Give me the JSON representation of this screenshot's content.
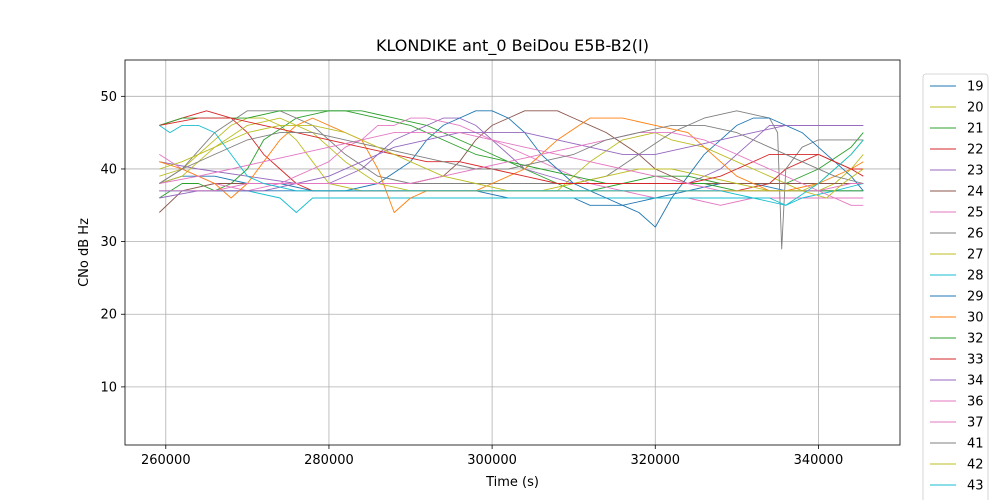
{
  "chart_data": {
    "type": "line",
    "title": "KLONDIKE ant_0 BeiDou E5B-B2(I)",
    "xlabel": "Time (s)",
    "ylabel": "CNo dB Hz",
    "xlim": [
      255000,
      350000
    ],
    "ylim": [
      2,
      55
    ],
    "xticks": [
      260000,
      280000,
      300000,
      320000,
      340000
    ],
    "yticks": [
      10,
      20,
      30,
      40,
      50
    ],
    "grid": true,
    "legend_position": "outside-right",
    "series": [
      {
        "name": "19",
        "color": "#1f77b4",
        "x": [
          259200,
          262000,
          266000,
          270000,
          274000,
          278000,
          282000,
          286000,
          290000,
          294000,
          298000,
          302000,
          306000,
          310000,
          312000,
          316000,
          320000,
          324000,
          328000,
          332000,
          336000,
          340000,
          344000,
          345500
        ],
        "y": [
          38,
          39,
          39,
          38,
          38,
          37,
          37,
          37,
          37,
          37,
          37,
          36,
          36,
          36,
          35,
          35,
          36,
          37,
          38,
          38,
          37,
          37,
          37,
          37
        ]
      },
      {
        "name": "20",
        "color": "#bcbd22",
        "x": [
          259200,
          262000,
          264000,
          266000,
          268000,
          270000,
          272000,
          274000,
          276000,
          278000,
          280000,
          284000,
          288000,
          292000,
          296000,
          300000,
          304000,
          308000,
          310000,
          312000,
          316000,
          320000,
          322000,
          326000,
          330000,
          334000,
          338000,
          340000,
          342000,
          344000,
          345500
        ],
        "y": [
          39,
          40,
          42,
          44,
          46,
          47,
          47,
          46,
          44,
          41,
          38,
          37,
          37,
          37,
          37,
          37,
          37,
          37,
          39,
          41,
          44,
          45,
          44,
          43,
          41,
          39,
          37,
          37,
          38,
          40,
          42
        ]
      },
      {
        "name": "21",
        "color": "#2ca02c",
        "x": [
          259200,
          262000,
          264000,
          266000,
          268000,
          270000,
          272000,
          276000,
          280000,
          284000,
          288000,
          292000,
          296000,
          300000,
          304000,
          308000,
          310000,
          312000,
          316000,
          320000,
          324000,
          328000,
          332000,
          336000,
          340000,
          344000,
          345500
        ],
        "y": [
          36,
          38,
          38,
          37,
          38,
          40,
          44,
          47,
          48,
          48,
          47,
          46,
          44,
          42,
          40,
          38,
          37,
          37,
          38,
          39,
          39,
          38,
          38,
          38,
          40,
          43,
          45
        ]
      },
      {
        "name": "22",
        "color": "#d62728",
        "x": [
          259200,
          262000,
          265000,
          268000,
          270000,
          272000,
          274000,
          276000,
          278000,
          280000,
          284000,
          290000,
          296000,
          302000,
          308000,
          314000,
          320000,
          326000,
          330000,
          334000,
          336000,
          338000,
          340000,
          342000,
          344000,
          345500
        ],
        "y": [
          46,
          47,
          48,
          47,
          45,
          42,
          40,
          38,
          37,
          37,
          37,
          37,
          37,
          37,
          37,
          37,
          37,
          37,
          37,
          38,
          40,
          41,
          42,
          41,
          40,
          39
        ]
      },
      {
        "name": "23",
        "color": "#9467bd",
        "x": [
          259200,
          264000,
          270000,
          276000,
          280000,
          284000,
          286000,
          288000,
          290000,
          292000,
          294000,
          296000,
          298000,
          300000,
          304000,
          310000,
          316000,
          320000,
          324000,
          328000,
          330000,
          332000,
          334000,
          336000,
          338000,
          340000,
          344000,
          345500
        ],
        "y": [
          41,
          40,
          39,
          38,
          38,
          40,
          42,
          44,
          45,
          46,
          47,
          47,
          46,
          44,
          40,
          38,
          38,
          38,
          38,
          40,
          42,
          44,
          46,
          46,
          46,
          46,
          46,
          46
        ]
      },
      {
        "name": "24",
        "color": "#8c564b",
        "x": [
          259200,
          262000,
          266000,
          270000,
          276000,
          280000,
          286000,
          290000,
          294000,
          296000,
          298000,
          300000,
          302000,
          304000,
          306000,
          308000,
          310000,
          314000,
          318000,
          320000,
          324000,
          328000,
          332000,
          336000,
          340000,
          344000,
          345500
        ],
        "y": [
          34,
          37,
          38,
          38,
          38,
          38,
          38,
          38,
          39,
          41,
          44,
          46,
          47,
          48,
          48,
          48,
          47,
          45,
          42,
          40,
          38,
          38,
          38,
          38,
          38,
          38,
          38
        ]
      },
      {
        "name": "25",
        "color": "#e377c2",
        "x": [
          259200,
          262000,
          266000,
          270000,
          274000,
          276000,
          278000,
          280000,
          282000,
          284000,
          286000,
          288000,
          290000,
          292000,
          296000,
          300000,
          304000,
          308000,
          312000,
          316000,
          320000,
          324000,
          328000,
          332000,
          336000,
          340000,
          344000,
          345500
        ],
        "y": [
          42,
          40,
          38,
          37,
          38,
          39,
          40,
          41,
          43,
          44,
          46,
          46,
          47,
          47,
          46,
          44,
          42,
          40,
          38,
          37,
          36,
          36,
          35,
          36,
          36,
          36,
          36,
          36
        ]
      },
      {
        "name": "26",
        "color": "#7f7f7f",
        "x": [
          259200,
          262000,
          266000,
          270000,
          274000,
          278000,
          282000,
          286000,
          290000,
          294000,
          298000,
          302000,
          306000,
          310000,
          314000,
          318000,
          322000,
          326000,
          330000,
          334000,
          335000,
          335500,
          336000,
          338000,
          340000,
          342000,
          344000,
          345500
        ],
        "y": [
          38,
          40,
          45,
          48,
          48,
          46,
          42,
          39,
          38,
          38,
          38,
          38,
          38,
          38,
          39,
          42,
          45,
          47,
          48,
          47,
          45,
          29,
          40,
          43,
          44,
          44,
          44,
          44
        ]
      },
      {
        "name": "27",
        "color": "#bcbd22",
        "x": [
          259200,
          262000,
          266000,
          270000,
          274000,
          278000,
          282000,
          286000,
          290000,
          294000,
          298000,
          302000,
          306000,
          310000,
          314000,
          318000,
          322000,
          326000,
          330000,
          334000,
          338000,
          340000,
          342000,
          344000,
          345500
        ],
        "y": [
          38,
          39,
          43,
          46,
          47,
          45,
          41,
          38,
          37,
          37,
          37,
          37,
          37,
          38,
          39,
          40,
          40,
          39,
          38,
          37,
          37,
          38,
          40,
          42,
          44
        ]
      },
      {
        "name": "28",
        "color": "#17becf",
        "x": [
          259200,
          262000,
          266000,
          270000,
          274000,
          276000,
          278000,
          282000,
          286000,
          290000,
          294000,
          298000,
          302000,
          306000,
          310000,
          314000,
          318000,
          322000,
          326000,
          330000,
          334000,
          336000,
          338000,
          342000,
          345500
        ],
        "y": [
          37,
          37,
          37,
          37,
          36,
          34,
          36,
          36,
          36,
          36,
          36,
          36,
          36,
          36,
          36,
          36,
          36,
          36,
          36,
          36,
          36,
          35,
          36,
          37,
          38
        ]
      },
      {
        "name": "29",
        "color": "#1f77b4",
        "x": [
          259200,
          264000,
          270000,
          276000,
          282000,
          286000,
          290000,
          292000,
          294000,
          296000,
          298000,
          300000,
          302000,
          304000,
          306000,
          308000,
          310000,
          312000,
          314000,
          316000,
          318000,
          320000,
          322000,
          324000,
          326000,
          328000,
          330000,
          332000,
          334000,
          336000,
          338000,
          340000,
          342000,
          344000,
          345500
        ],
        "y": [
          37,
          37,
          37,
          37,
          37,
          38,
          41,
          44,
          46,
          47,
          48,
          48,
          47,
          45,
          42,
          40,
          38,
          37,
          36,
          35,
          34,
          32,
          36,
          39,
          42,
          44,
          46,
          47,
          47,
          46,
          45,
          43,
          41,
          39,
          37
        ]
      },
      {
        "name": "30",
        "color": "#ff7f0e",
        "x": [
          259200,
          262000,
          266000,
          268000,
          270000,
          272000,
          274000,
          276000,
          278000,
          280000,
          282000,
          284000,
          286000,
          288000,
          290000,
          292000,
          294000,
          296000,
          298000,
          300000,
          304000,
          308000,
          312000,
          316000,
          320000,
          324000,
          326000,
          328000,
          330000,
          332000,
          334000,
          336000,
          340000,
          344000,
          345500
        ],
        "y": [
          41,
          40,
          38,
          36,
          38,
          41,
          44,
          46,
          47,
          46,
          45,
          44,
          40,
          34,
          36,
          37,
          37,
          37,
          37,
          38,
          40,
          44,
          47,
          47,
          46,
          45,
          43,
          41,
          39,
          38,
          37,
          37,
          38,
          40,
          41
        ]
      },
      {
        "name": "32",
        "color": "#2ca02c",
        "x": [
          259200,
          262000,
          266000,
          270000,
          274000,
          278000,
          282000,
          286000,
          290000,
          294000,
          298000,
          302000,
          306000,
          310000,
          314000,
          318000,
          322000,
          326000,
          330000,
          334000,
          338000,
          342000,
          345500
        ],
        "y": [
          46,
          47,
          47,
          47,
          48,
          48,
          48,
          47,
          46,
          44,
          42,
          41,
          40,
          39,
          38,
          38,
          38,
          38,
          37,
          37,
          37,
          37,
          37
        ]
      },
      {
        "name": "33",
        "color": "#d62728",
        "x": [
          259200,
          264000,
          268000,
          272000,
          276000,
          280000,
          284000,
          288000,
          292000,
          296000,
          300000,
          304000,
          308000,
          312000,
          316000,
          320000,
          324000,
          328000,
          330000,
          332000,
          334000,
          336000,
          338000,
          340000,
          342000,
          344000,
          345500
        ],
        "y": [
          46,
          47,
          47,
          46,
          45,
          44,
          43,
          42,
          41,
          41,
          40,
          39,
          38,
          38,
          38,
          38,
          38,
          39,
          40,
          41,
          42,
          42,
          42,
          42,
          41,
          40,
          40
        ]
      },
      {
        "name": "34",
        "color": "#9467bd",
        "x": [
          259200,
          264000,
          268000,
          272000,
          276000,
          280000,
          284000,
          288000,
          292000,
          296000,
          300000,
          304000,
          308000,
          312000,
          316000,
          320000,
          324000,
          328000,
          332000,
          336000,
          340000,
          344000,
          345500
        ],
        "y": [
          36,
          37,
          37,
          37,
          38,
          39,
          41,
          43,
          44,
          45,
          45,
          45,
          44,
          43,
          42,
          42,
          43,
          44,
          45,
          46,
          46,
          46,
          46
        ]
      },
      {
        "name": "36",
        "color": "#e377c2",
        "x": [
          259200,
          264000,
          268000,
          272000,
          276000,
          280000,
          284000,
          288000,
          292000,
          296000,
          300000,
          304000,
          308000,
          312000,
          316000,
          320000,
          324000,
          328000,
          332000,
          336000,
          340000,
          344000,
          345500
        ],
        "y": [
          38,
          39,
          40,
          41,
          42,
          43,
          44,
          45,
          45,
          45,
          44,
          43,
          42,
          41,
          40,
          39,
          38,
          37,
          37,
          37,
          37,
          38,
          38
        ]
      },
      {
        "name": "37",
        "color": "#e377c2",
        "x": [
          259200,
          262000,
          266000,
          270000,
          274000,
          278000,
          282000,
          286000,
          290000,
          294000,
          298000,
          302000,
          306000,
          310000,
          314000,
          318000,
          322000,
          326000,
          330000,
          334000,
          338000,
          342000,
          344000,
          345500
        ],
        "y": [
          37,
          37,
          37,
          38,
          38,
          38,
          38,
          38,
          38,
          39,
          40,
          41,
          42,
          43,
          44,
          45,
          45,
          44,
          42,
          40,
          38,
          36,
          35,
          35
        ]
      },
      {
        "name": "41",
        "color": "#7f7f7f",
        "x": [
          259200,
          262000,
          266000,
          270000,
          274000,
          278000,
          282000,
          286000,
          290000,
          294000,
          298000,
          302000,
          306000,
          310000,
          314000,
          318000,
          322000,
          326000,
          330000,
          334000,
          338000,
          342000,
          345500
        ],
        "y": [
          38,
          40,
          42,
          44,
          45,
          45,
          44,
          43,
          42,
          41,
          40,
          40,
          41,
          42,
          44,
          45,
          46,
          46,
          45,
          43,
          41,
          39,
          38
        ]
      },
      {
        "name": "42",
        "color": "#bcbd22",
        "x": [
          259200,
          262000,
          266000,
          270000,
          274000,
          278000,
          282000,
          286000,
          290000,
          294000,
          298000,
          302000,
          306000,
          310000,
          314000,
          318000,
          322000,
          326000,
          330000,
          334000,
          338000,
          341000,
          343000,
          345500
        ],
        "y": [
          40,
          41,
          43,
          45,
          46,
          46,
          45,
          43,
          41,
          39,
          38,
          37,
          37,
          37,
          37,
          37,
          37,
          37,
          37,
          37,
          37,
          36,
          38,
          40
        ]
      },
      {
        "name": "43",
        "color": "#17becf",
        "x": [
          259200,
          260500,
          262000,
          264000,
          266000,
          268000,
          270000,
          272000,
          276000,
          280000,
          284000,
          288000,
          292000,
          296000,
          300000,
          304000,
          308000,
          312000,
          316000,
          320000,
          324000,
          328000,
          332000,
          336000,
          340000,
          344000,
          345500
        ],
        "y": [
          46,
          45,
          46,
          46,
          45,
          42,
          39,
          38,
          37,
          37,
          37,
          37,
          37,
          37,
          37,
          37,
          37,
          37,
          37,
          37,
          37,
          37,
          36,
          35,
          38,
          42,
          44
        ]
      }
    ]
  }
}
